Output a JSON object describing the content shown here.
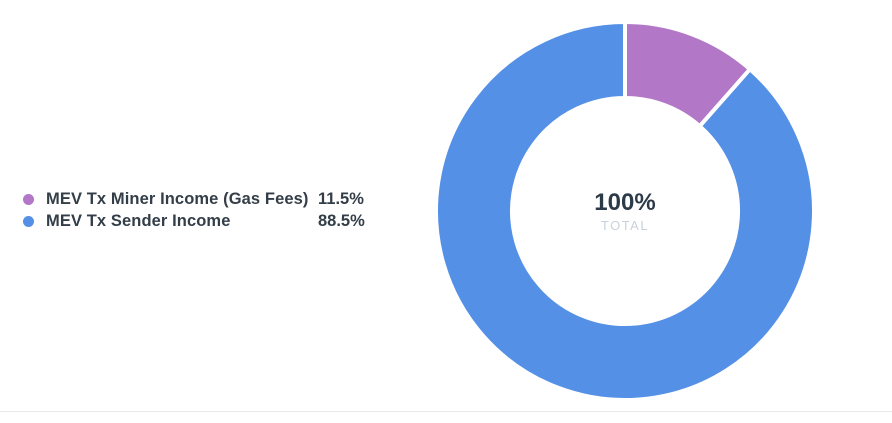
{
  "colors": {
    "legend_text": "#333e48",
    "center_label": "#2d3b49",
    "center_sublabel": "#c9d2db",
    "divider": "#e8e9ea",
    "background": "#ffffff"
  },
  "chart_data": {
    "type": "pie",
    "variant": "donut",
    "title": "",
    "legend_position": "left",
    "start_angle_deg": 0,
    "inner_radius_ratio": 0.598,
    "gap_color": "#ffffff",
    "gap_width": 4,
    "values_unit": "percent",
    "series": [
      {
        "id": "mev-tx-miner-income",
        "name": "MEV Tx Miner Income (Gas Fees)",
        "value": 11.5,
        "value_label": "11.5%",
        "color": "#b277c6"
      },
      {
        "id": "mev-tx-sender-income",
        "name": "MEV Tx Sender Income",
        "value": 88.5,
        "value_label": "88.5%",
        "color": "#5490e6"
      }
    ],
    "center_label": "100%",
    "center_sublabel": "TOTAL"
  }
}
